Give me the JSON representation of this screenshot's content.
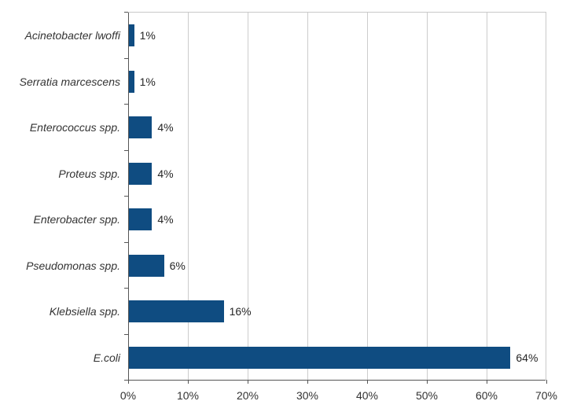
{
  "chart_data": {
    "type": "bar",
    "orientation": "horizontal",
    "title": "",
    "xlabel": "",
    "ylabel": "",
    "categories": [
      "Acinetobacter lwoffi",
      "Serratia marcescens",
      "Enterococcus spp.",
      "Proteus spp.",
      "Enterobacter spp.",
      "Pseudomonas spp.",
      "Klebsiella spp.",
      "E.coli"
    ],
    "values": [
      1,
      1,
      4,
      4,
      4,
      6,
      16,
      64
    ],
    "data_labels": [
      "1%",
      "1%",
      "4%",
      "4%",
      "4%",
      "6%",
      "16%",
      "64%"
    ],
    "xlim": [
      0,
      70
    ],
    "x_tick_step": 10,
    "x_tick_labels": [
      "0%",
      "10%",
      "20%",
      "30%",
      "40%",
      "50%",
      "60%",
      "70%"
    ],
    "grid": "vertical",
    "legend": "none",
    "colors": {
      "bar": "#0f4c81",
      "gridline": "#cccccc",
      "plot_border": "#c9c9c9",
      "axis_line": "#555555",
      "category_text": "#333333",
      "value_text": "#262626"
    }
  }
}
